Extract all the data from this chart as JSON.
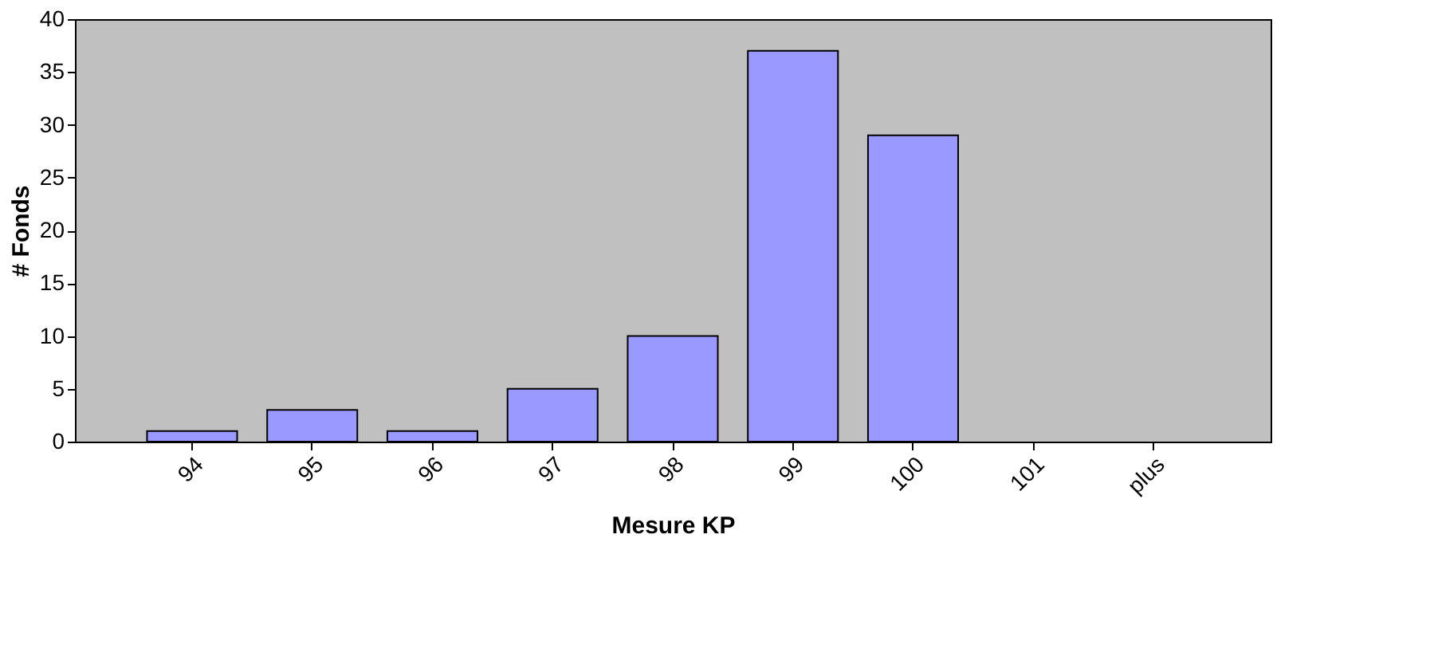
{
  "chart_data": {
    "type": "bar",
    "xlabel": "Mesure KP",
    "ylabel": "# Fonds",
    "categories": [
      "94",
      "95",
      "96",
      "97",
      "98",
      "99",
      "100",
      "101",
      "plus"
    ],
    "values": [
      1,
      3,
      1,
      5,
      10,
      37,
      29,
      0,
      0
    ],
    "color": "#9999ff",
    "ylim": [
      0,
      40
    ],
    "yticks": [
      0,
      5,
      10,
      15,
      20,
      25,
      30,
      35,
      40
    ],
    "grid": false
  }
}
